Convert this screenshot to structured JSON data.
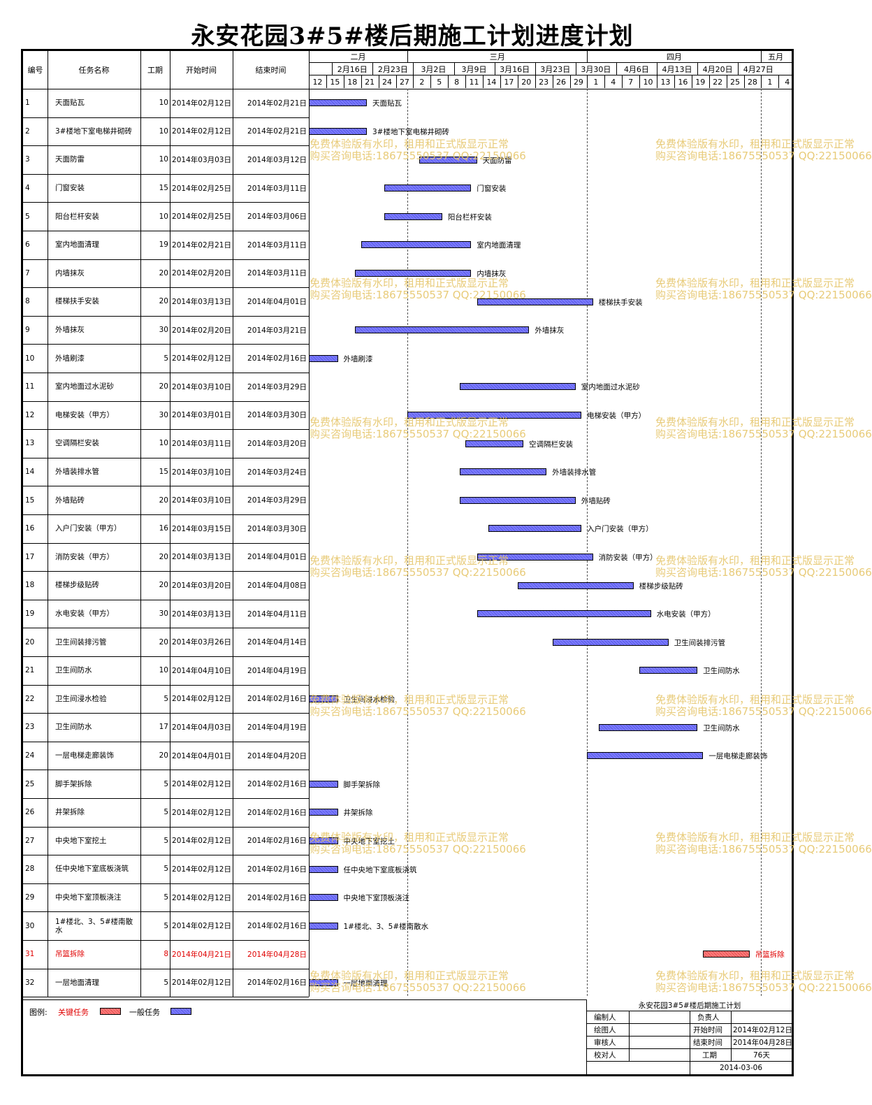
{
  "title": "永安花园3#5#楼后期施工计划进度计划",
  "headers": {
    "id": "编号",
    "name": "任务名称",
    "dur": "工期",
    "start": "开始时间",
    "end": "结束时间"
  },
  "months": [
    {
      "label": "二月",
      "from": 0,
      "to": 17
    },
    {
      "label": "三月",
      "from": 17,
      "to": 48
    },
    {
      "label": "四月",
      "from": 48,
      "to": 78
    },
    {
      "label": "五月",
      "from": 78,
      "to": 83
    }
  ],
  "weeks": [
    {
      "label": "2月16日",
      "from": 4
    },
    {
      "label": "2月23日",
      "from": 11
    },
    {
      "label": "3月2日",
      "from": 18
    },
    {
      "label": "3月9日",
      "from": 25
    },
    {
      "label": "3月16日",
      "from": 32
    },
    {
      "label": "3月23日",
      "from": 39
    },
    {
      "label": "3月30日",
      "from": 46
    },
    {
      "label": "4月6日",
      "from": 53
    },
    {
      "label": "4月13日",
      "from": 60
    },
    {
      "label": "4月20日",
      "from": 67
    },
    {
      "label": "4月27日",
      "from": 74
    }
  ],
  "days": [
    "12",
    "15",
    "18",
    "21",
    "24",
    "27",
    "2",
    "5",
    "8",
    "11",
    "14",
    "17",
    "20",
    "23",
    "26",
    "29",
    "1",
    "4",
    "7",
    "10",
    "13",
    "16",
    "19",
    "22",
    "25",
    "28",
    "1",
    "4"
  ],
  "chart_data": {
    "type": "gantt",
    "axis_start": "2014-02-12",
    "axis_end": "2014-05-05",
    "month_lines": [
      "2014-03-01",
      "2014-04-01",
      "2014-05-01"
    ],
    "tasks": [
      {
        "id": "1",
        "name": "天面贴瓦",
        "dur": "10",
        "start": "2014年02月12日",
        "end": "2014年02月21日",
        "s": "2014-02-12",
        "e": "2014-02-21",
        "critical": false
      },
      {
        "id": "2",
        "name": "3#楼地下室电梯井砌砖",
        "dur": "10",
        "start": "2014年02月12日",
        "end": "2014年02月21日",
        "s": "2014-02-12",
        "e": "2014-02-21",
        "critical": false
      },
      {
        "id": "3",
        "name": "天面防雷",
        "dur": "10",
        "start": "2014年03月03日",
        "end": "2014年03月12日",
        "s": "2014-03-03",
        "e": "2014-03-12",
        "critical": false
      },
      {
        "id": "4",
        "name": "门窗安装",
        "dur": "15",
        "start": "2014年02月25日",
        "end": "2014年03月11日",
        "s": "2014-02-25",
        "e": "2014-03-11",
        "critical": false
      },
      {
        "id": "5",
        "name": "阳台栏杆安装",
        "dur": "10",
        "start": "2014年02月25日",
        "end": "2014年03月06日",
        "s": "2014-02-25",
        "e": "2014-03-06",
        "critical": false
      },
      {
        "id": "6",
        "name": "室内地面清理",
        "dur": "19",
        "start": "2014年02月21日",
        "end": "2014年03月11日",
        "s": "2014-02-21",
        "e": "2014-03-11",
        "critical": false
      },
      {
        "id": "7",
        "name": "内墙抹灰",
        "dur": "20",
        "start": "2014年02月20日",
        "end": "2014年03月11日",
        "s": "2014-02-20",
        "e": "2014-03-11",
        "critical": false
      },
      {
        "id": "8",
        "name": "楼梯扶手安装",
        "dur": "20",
        "start": "2014年03月13日",
        "end": "2014年04月01日",
        "s": "2014-03-13",
        "e": "2014-04-01",
        "critical": false
      },
      {
        "id": "9",
        "name": "外墙抹灰",
        "dur": "30",
        "start": "2014年02月20日",
        "end": "2014年03月21日",
        "s": "2014-02-20",
        "e": "2014-03-21",
        "critical": false
      },
      {
        "id": "10",
        "name": "外墙刷漆",
        "dur": "5",
        "start": "2014年02月12日",
        "end": "2014年02月16日",
        "s": "2014-02-12",
        "e": "2014-02-16",
        "critical": false
      },
      {
        "id": "11",
        "name": "室内地面过水泥砂",
        "dur": "20",
        "start": "2014年03月10日",
        "end": "2014年03月29日",
        "s": "2014-03-10",
        "e": "2014-03-29",
        "critical": false
      },
      {
        "id": "12",
        "name": "电梯安装（甲方）",
        "dur": "30",
        "start": "2014年03月01日",
        "end": "2014年03月30日",
        "s": "2014-03-01",
        "e": "2014-03-30",
        "critical": false
      },
      {
        "id": "13",
        "name": "空调隔栏安装",
        "dur": "10",
        "start": "2014年03月11日",
        "end": "2014年03月20日",
        "s": "2014-03-11",
        "e": "2014-03-20",
        "critical": false
      },
      {
        "id": "14",
        "name": "外墙装排水管",
        "dur": "15",
        "start": "2014年03月10日",
        "end": "2014年03月24日",
        "s": "2014-03-10",
        "e": "2014-03-24",
        "critical": false
      },
      {
        "id": "15",
        "name": "外墙贴砖",
        "dur": "20",
        "start": "2014年03月10日",
        "end": "2014年03月29日",
        "s": "2014-03-10",
        "e": "2014-03-29",
        "critical": false
      },
      {
        "id": "16",
        "name": "入户门安装（甲方）",
        "dur": "16",
        "start": "2014年03月15日",
        "end": "2014年03月30日",
        "s": "2014-03-15",
        "e": "2014-03-30",
        "critical": false
      },
      {
        "id": "17",
        "name": "消防安装（甲方）",
        "dur": "20",
        "start": "2014年03月13日",
        "end": "2014年04月01日",
        "s": "2014-03-13",
        "e": "2014-04-01",
        "critical": false
      },
      {
        "id": "18",
        "name": "楼梯步级贴砖",
        "dur": "20",
        "start": "2014年03月20日",
        "end": "2014年04月08日",
        "s": "2014-03-20",
        "e": "2014-04-08",
        "critical": false
      },
      {
        "id": "19",
        "name": "水电安装（甲方）",
        "dur": "30",
        "start": "2014年03月13日",
        "end": "2014年04月11日",
        "s": "2014-03-13",
        "e": "2014-04-11",
        "critical": false
      },
      {
        "id": "20",
        "name": "卫生间装排污管",
        "dur": "20",
        "start": "2014年03月26日",
        "end": "2014年04月14日",
        "s": "2014-03-26",
        "e": "2014-04-14",
        "critical": false
      },
      {
        "id": "21",
        "name": "卫生间防水",
        "dur": "10",
        "start": "2014年04月10日",
        "end": "2014年04月19日",
        "s": "2014-04-10",
        "e": "2014-04-19",
        "critical": false
      },
      {
        "id": "22",
        "name": "卫生间浸水检验",
        "dur": "5",
        "start": "2014年02月12日",
        "end": "2014年02月16日",
        "s": "2014-02-12",
        "e": "2014-02-16",
        "critical": false
      },
      {
        "id": "23",
        "name": "卫生间防水",
        "dur": "17",
        "start": "2014年04月03日",
        "end": "2014年04月19日",
        "s": "2014-04-03",
        "e": "2014-04-19",
        "critical": false
      },
      {
        "id": "24",
        "name": "一层电梯走廊装饰",
        "dur": "20",
        "start": "2014年04月01日",
        "end": "2014年04月20日",
        "s": "2014-04-01",
        "e": "2014-04-20",
        "critical": false
      },
      {
        "id": "25",
        "name": "脚手架拆除",
        "dur": "5",
        "start": "2014年02月12日",
        "end": "2014年02月16日",
        "s": "2014-02-12",
        "e": "2014-02-16",
        "critical": false
      },
      {
        "id": "26",
        "name": "井架拆除",
        "dur": "5",
        "start": "2014年02月12日",
        "end": "2014年02月16日",
        "s": "2014-02-12",
        "e": "2014-02-16",
        "critical": false
      },
      {
        "id": "27",
        "name": "中央地下室挖土",
        "dur": "5",
        "start": "2014年02月12日",
        "end": "2014年02月16日",
        "s": "2014-02-12",
        "e": "2014-02-16",
        "critical": false
      },
      {
        "id": "28",
        "name": "任中央地下室底板浇筑",
        "dur": "5",
        "start": "2014年02月12日",
        "end": "2014年02月16日",
        "s": "2014-02-12",
        "e": "2014-02-16",
        "critical": false
      },
      {
        "id": "29",
        "name": "中央地下室顶板浇注",
        "dur": "5",
        "start": "2014年02月12日",
        "end": "2014年02月16日",
        "s": "2014-02-12",
        "e": "2014-02-16",
        "critical": false
      },
      {
        "id": "30",
        "name": "1#楼北、3、5#楼南散水",
        "dur": "5",
        "start": "2014年02月12日",
        "end": "2014年02月16日",
        "s": "2014-02-12",
        "e": "2014-02-16",
        "critical": false
      },
      {
        "id": "31",
        "name": "吊篮拆除",
        "dur": "8",
        "start": "2014年04月21日",
        "end": "2014年04月28日",
        "s": "2014-04-21",
        "e": "2014-04-28",
        "critical": true
      },
      {
        "id": "32",
        "name": "一层地面清理",
        "dur": "5",
        "start": "2014年02月12日",
        "end": "2014年02月16日",
        "s": "2014-02-12",
        "e": "2014-02-16",
        "critical": false
      }
    ]
  },
  "legend": {
    "label": "图例:",
    "critical": "关键任务",
    "normal": "一般任务",
    "critical_color": "#ff7a7a",
    "normal_color": "#7b7bff"
  },
  "titleblock": {
    "title": "永安花园3#5#楼后期施工计划",
    "editor_label": "编制人",
    "owner_label": "负责人",
    "drafter_label": "绘图人",
    "start_label": "开始时间",
    "start_value": "2014年02月12日",
    "reviewer_label": "审核人",
    "end_label": "结束时间",
    "end_value": "2014年04月28日",
    "checker_label": "校对人",
    "dur_label": "工期",
    "dur_value": "76天",
    "date": "2014-03-06"
  },
  "watermark": {
    "line1": "免费体验版有水印，租用和正式版显示正常",
    "line2": "购买咨询电话:18675550537 QQ:22150066"
  }
}
